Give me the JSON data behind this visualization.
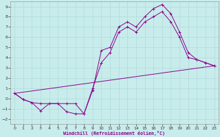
{
  "background_color": "#c8ecec",
  "grid_color": "#b0d8d8",
  "line_color": "#880088",
  "xlabel": "Windchill (Refroidissement éolien,°C)",
  "xlim": [
    -0.5,
    23.5
  ],
  "ylim": [
    -2.5,
    9.5
  ],
  "xticks": [
    0,
    1,
    2,
    3,
    4,
    5,
    6,
    7,
    8,
    9,
    10,
    11,
    12,
    13,
    14,
    15,
    16,
    17,
    18,
    19,
    20,
    21,
    22,
    23
  ],
  "yticks": [
    -2,
    -1,
    0,
    1,
    2,
    3,
    4,
    5,
    6,
    7,
    8,
    9
  ],
  "line1_x": [
    0,
    1,
    2,
    3,
    4,
    5,
    6,
    7,
    8,
    9,
    10,
    11,
    12,
    13,
    14,
    15,
    16,
    17,
    18,
    19,
    20,
    21,
    22,
    23
  ],
  "line1_y": [
    0.5,
    -0.1,
    -0.4,
    -1.2,
    -0.5,
    -0.5,
    -1.3,
    -1.5,
    -1.5,
    0.8,
    4.7,
    5.0,
    7.0,
    7.5,
    7.0,
    8.0,
    8.8,
    9.2,
    8.3,
    6.5,
    4.5,
    3.8,
    3.5,
    3.2
  ],
  "line2_x": [
    0,
    1,
    2,
    3,
    4,
    5,
    6,
    7,
    8,
    9,
    10,
    11,
    12,
    13,
    14,
    15,
    16,
    17,
    18,
    19,
    20,
    21,
    22,
    23
  ],
  "line2_y": [
    0.5,
    -0.1,
    -0.4,
    -0.5,
    -0.5,
    -0.5,
    -0.5,
    -0.5,
    -1.5,
    1.0,
    3.5,
    4.5,
    6.5,
    7.0,
    6.5,
    7.5,
    8.0,
    8.5,
    7.5,
    6.0,
    4.0,
    3.8,
    3.5,
    3.2
  ],
  "line3_x": [
    0,
    23
  ],
  "line3_y": [
    0.5,
    3.2
  ]
}
